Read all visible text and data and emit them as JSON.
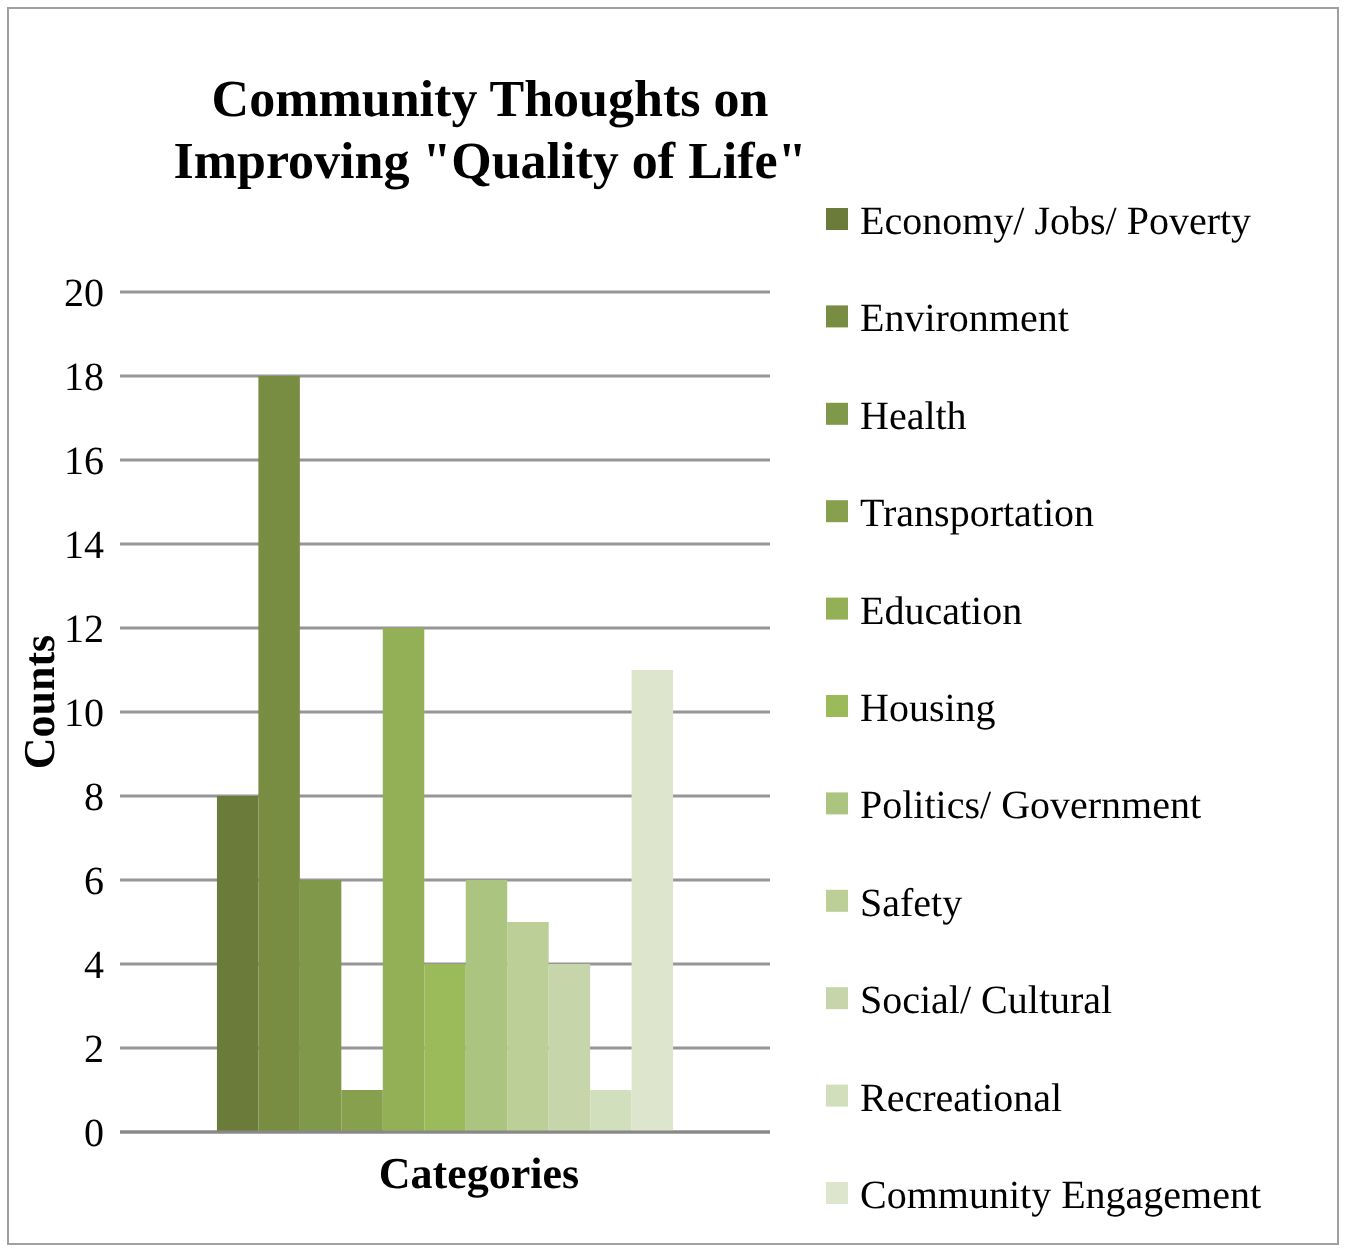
{
  "chart_data": {
    "type": "bar",
    "title": "Community Thoughts on Improving \"Quality of Life\"",
    "xlabel": "Categories",
    "ylabel": "Counts",
    "categories": [
      null
    ],
    "ylim": [
      0,
      20
    ],
    "yticks": [
      0,
      2,
      4,
      6,
      8,
      10,
      12,
      14,
      16,
      18,
      20
    ],
    "grid": "y",
    "legend": "right",
    "series": [
      {
        "name": "Economy/ Jobs/ Poverty",
        "color": "#6a7b3a",
        "values": [
          8
        ]
      },
      {
        "name": "Environment",
        "color": "#788c42",
        "values": [
          18
        ]
      },
      {
        "name": "Health",
        "color": "#7f984a",
        "values": [
          6
        ]
      },
      {
        "name": "Transportation",
        "color": "#86a04e",
        "values": [
          1
        ]
      },
      {
        "name": "Education",
        "color": "#94b057",
        "values": [
          12
        ]
      },
      {
        "name": "Housing",
        "color": "#9bba5a",
        "values": [
          4
        ]
      },
      {
        "name": "Politics/ Government",
        "color": "#abc47f",
        "values": [
          6
        ]
      },
      {
        "name": "Safety",
        "color": "#bbcf96",
        "values": [
          5
        ]
      },
      {
        "name": "Social/ Cultural",
        "color": "#c7d6aa",
        "values": [
          4
        ]
      },
      {
        "name": "Recreational",
        "color": "#d2dfbd",
        "values": [
          1
        ]
      },
      {
        "name": "Community Engagement",
        "color": "#dde6cc",
        "values": [
          11
        ]
      }
    ]
  }
}
